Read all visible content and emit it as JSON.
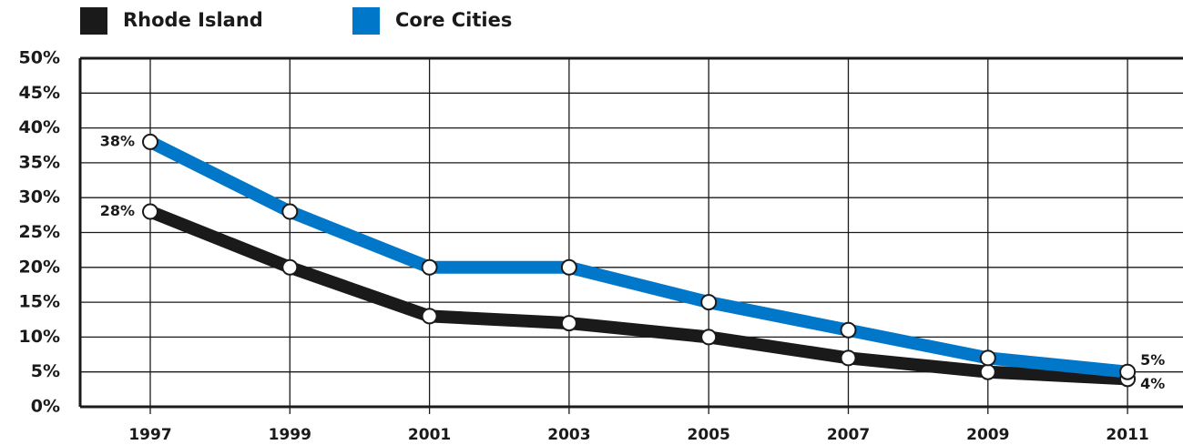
{
  "chart_data": {
    "type": "line",
    "categories": [
      "1997",
      "1999",
      "2001",
      "2003",
      "2005",
      "2007",
      "2009",
      "2011"
    ],
    "series": [
      {
        "name": "Rhode Island",
        "color": "#1a1a1a",
        "values": [
          28,
          20,
          13,
          12,
          10,
          7,
          5,
          4
        ],
        "value_labels": [
          "28%",
          null,
          null,
          null,
          null,
          null,
          null,
          "4%"
        ]
      },
      {
        "name": "Core Cities",
        "color": "#0077c8",
        "values": [
          38,
          28,
          20,
          20,
          15,
          11,
          7,
          5
        ],
        "value_labels": [
          "38%",
          null,
          null,
          null,
          null,
          null,
          null,
          "5%"
        ]
      }
    ],
    "ylim": [
      0,
      50
    ],
    "yticks": [
      {
        "value": 0,
        "label": "0%"
      },
      {
        "value": 5,
        "label": "5%"
      },
      {
        "value": 10,
        "label": "10%"
      },
      {
        "value": 15,
        "label": "15%"
      },
      {
        "value": 20,
        "label": "20%"
      },
      {
        "value": 25,
        "label": "25%"
      },
      {
        "value": 30,
        "label": "30%"
      },
      {
        "value": 35,
        "label": "35%"
      },
      {
        "value": 40,
        "label": "40%"
      },
      {
        "value": 45,
        "label": "45%"
      },
      {
        "value": 50,
        "label": "50%"
      }
    ],
    "grid": true,
    "legend": "top"
  }
}
